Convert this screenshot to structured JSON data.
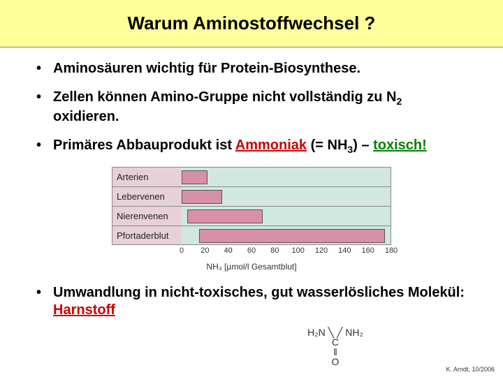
{
  "title": "Warum Aminostoffwechsel ?",
  "bullets": {
    "b1": "Aminosäuren wichtig für Protein-Biosynthese.",
    "b2_a": "Zellen können Amino-Gruppe nicht vollständig zu N",
    "b2_sub": "2",
    "b2_b": " oxidieren.",
    "b3_a": "Primäres Abbauprodukt ist ",
    "b3_ammoniak": "Ammoniak",
    "b3_b": " (= NH",
    "b3_sub": "3",
    "b3_c": ") – ",
    "b3_tox": "toxisch!",
    "b4_a": "Umwandlung in nicht-toxisches, gut wasserlösliches Molekül: ",
    "b4_h": "Harnstoff"
  },
  "chart": {
    "rows": [
      {
        "label": "Arterien",
        "from": 0,
        "to": 22
      },
      {
        "label": "Lebervenen",
        "from": 0,
        "to": 35
      },
      {
        "label": "Nierenvenen",
        "from": 5,
        "to": 70
      },
      {
        "label": "Pfortaderblut",
        "from": 15,
        "to": 175
      }
    ],
    "xmax": 180,
    "ticks": [
      "0",
      "20",
      "40",
      "60",
      "80",
      "100",
      "120",
      "140",
      "160",
      "180"
    ],
    "axis_label": "NH₃ [µmol/l Gesamtblut]",
    "label_bg": "#e8d0d8",
    "zone_bg": "#d0e8e0",
    "bar_color": "#d890a8"
  },
  "structure": {
    "r1": "H₂N ╲   ╱ NH₂",
    "r2": "C",
    "r3": "‖",
    "r4": "O"
  },
  "footer": "K. Arndt, 10/2006"
}
